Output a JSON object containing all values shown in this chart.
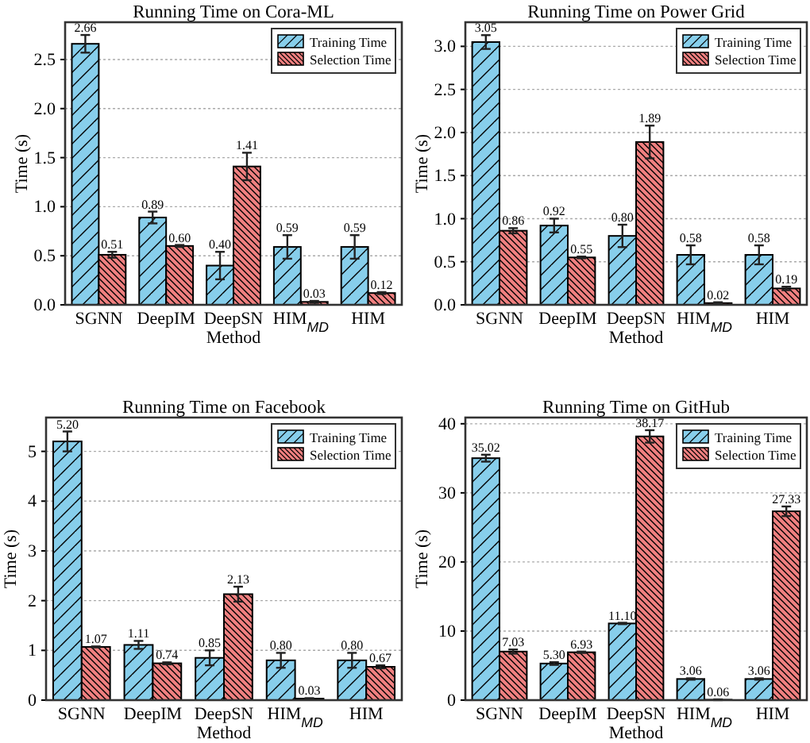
{
  "chart_data": [
    {
      "type": "bar",
      "title": "Running Time on Cora-ML",
      "xlabel": "Method",
      "ylabel": "Time (s)",
      "categories": [
        "SGNN",
        "DeepIM",
        "DeepSN",
        "HIM$_{MD}$",
        "HIM"
      ],
      "ylim": [
        0,
        2.88
      ],
      "yticks": [
        {
          "value": 0,
          "label": "0.0"
        },
        {
          "value": 0.5,
          "label": "0.5"
        },
        {
          "value": 1,
          "label": "1.0"
        },
        {
          "value": 1.5,
          "label": "1.5"
        },
        {
          "value": 2,
          "label": "2.0"
        },
        {
          "value": 2.5,
          "label": "2.5"
        }
      ],
      "grid": "y",
      "legend": "top right",
      "series": [
        {
          "name": "Training Time",
          "color": "#87ceeb",
          "values": [
            2.66,
            0.89,
            0.4,
            0.59,
            0.59
          ],
          "value_labels": [
            "2.66",
            "0.89",
            "0.40",
            "0.59",
            "0.59"
          ],
          "errors": [
            0.09,
            0.06,
            0.14,
            0.12,
            0.12
          ]
        },
        {
          "name": "Selection Time",
          "color": "#f08080",
          "values": [
            0.51,
            0.6,
            1.41,
            0.03,
            0.12
          ],
          "value_labels": [
            "0.51",
            "0.60",
            "1.41",
            "0.03",
            "0.12"
          ],
          "errors": [
            0.03,
            0.01,
            0.14,
            0.01,
            0.01
          ]
        }
      ]
    },
    {
      "type": "bar",
      "title": "Running Time on Power Grid",
      "xlabel": "Method",
      "ylabel": "Time (s)",
      "categories": [
        "SGNN",
        "DeepIM",
        "DeepSN",
        "HIM$_{MD}$",
        "HIM"
      ],
      "ylim": [
        0,
        3.28
      ],
      "yticks": [
        {
          "value": 0,
          "label": "0.0"
        },
        {
          "value": 0.5,
          "label": "0.5"
        },
        {
          "value": 1,
          "label": "1.0"
        },
        {
          "value": 1.5,
          "label": "1.5"
        },
        {
          "value": 2,
          "label": "2.0"
        },
        {
          "value": 2.5,
          "label": "2.5"
        },
        {
          "value": 3,
          "label": "3.0"
        }
      ],
      "grid": "y",
      "legend": "top right",
      "series": [
        {
          "name": "Training Time",
          "color": "#87ceeb",
          "values": [
            3.05,
            0.92,
            0.8,
            0.58,
            0.58
          ],
          "value_labels": [
            "3.05",
            "0.92",
            "0.80",
            "0.58",
            "0.58"
          ],
          "errors": [
            0.08,
            0.08,
            0.13,
            0.11,
            0.11
          ]
        },
        {
          "name": "Selection Time",
          "color": "#f08080",
          "values": [
            0.86,
            0.55,
            1.89,
            0.02,
            0.19
          ],
          "value_labels": [
            "0.86",
            "0.55",
            "1.89",
            "0.02",
            "0.19"
          ],
          "errors": [
            0.03,
            0.01,
            0.19,
            0.01,
            0.02
          ]
        }
      ]
    },
    {
      "type": "bar",
      "title": "Running Time on Facebook",
      "xlabel": "Method",
      "ylabel": "Time (s)",
      "categories": [
        "SGNN",
        "DeepIM",
        "DeepSN",
        "HIM$_{MD}$",
        "HIM"
      ],
      "ylim": [
        0,
        5.68
      ],
      "yticks": [
        0,
        1,
        2,
        3,
        4,
        5
      ],
      "grid": "y",
      "legend": "top right",
      "series": [
        {
          "name": "Training Time",
          "color": "#87ceeb",
          "values": [
            5.2,
            1.11,
            0.85,
            0.8,
            0.8
          ],
          "value_labels": [
            "5.20",
            "1.11",
            "0.85",
            "0.80",
            "0.80"
          ],
          "errors": [
            0.2,
            0.08,
            0.15,
            0.15,
            0.15
          ]
        },
        {
          "name": "Selection Time",
          "color": "#f08080",
          "values": [
            1.07,
            0.74,
            2.13,
            0.03,
            0.67
          ],
          "value_labels": [
            "1.07",
            "0.74",
            "2.13",
            "0.03",
            "0.67"
          ],
          "errors": [
            0.01,
            0.02,
            0.15,
            0.01,
            0.03
          ]
        }
      ]
    },
    {
      "type": "bar",
      "title": "Running Time on GitHub",
      "xlabel": "Method",
      "ylabel": "Time (s)",
      "categories": [
        "SGNN",
        "DeepIM",
        "DeepSN",
        "HIM$_{MD}$",
        "HIM"
      ],
      "ylim": [
        0,
        40.9
      ],
      "yticks": [
        0,
        10,
        20,
        30,
        40
      ],
      "grid": "y",
      "legend": "top right",
      "series": [
        {
          "name": "Training Time",
          "color": "#87ceeb",
          "values": [
            35.02,
            5.3,
            11.1,
            3.06,
            3.06
          ],
          "value_labels": [
            "35.02",
            "5.30",
            "11.10",
            "3.06",
            "3.06"
          ],
          "errors": [
            0.5,
            0.2,
            0.1,
            0.1,
            0.1
          ]
        },
        {
          "name": "Selection Time",
          "color": "#f08080",
          "values": [
            7.03,
            6.93,
            38.17,
            0.06,
            27.33
          ],
          "value_labels": [
            "7.03",
            "6.93",
            "38.17",
            "0.06",
            "27.33"
          ],
          "errors": [
            0.3,
            0.1,
            0.9,
            0.05,
            0.7
          ]
        }
      ]
    }
  ]
}
